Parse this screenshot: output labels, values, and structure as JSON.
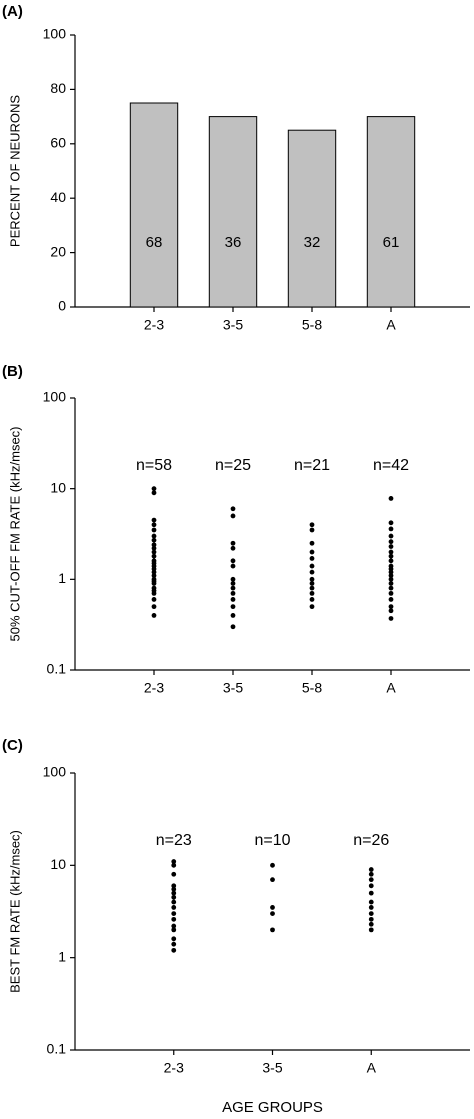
{
  "chart_data": [
    {
      "type": "bar",
      "title": "(A)",
      "ylabel": "PERCENT OF NEURONS",
      "categories": [
        "2-3",
        "3-5",
        "5-8",
        "A"
      ],
      "values": [
        75,
        70,
        65,
        70
      ],
      "counts": [
        68,
        36,
        32,
        61
      ],
      "color": "#c0c0c0",
      "ylim": [
        0,
        100
      ],
      "yticks": [
        0,
        20,
        40,
        60,
        80,
        100
      ]
    },
    {
      "type": "scatter",
      "title": "(B)",
      "ylabel": "50% CUT-OFF FM RATE (kHz/msec)",
      "categories": [
        "2-3",
        "3-5",
        "5-8",
        "A"
      ],
      "n_labels": [
        "n=58",
        "n=25",
        "n=21",
        "n=42"
      ],
      "values": [
        [
          10,
          9,
          4.5,
          4,
          3.5,
          3,
          2.7,
          2.4,
          2.2,
          2,
          1.8,
          1.6,
          1.5,
          1.4,
          1.3,
          1.2,
          1.1,
          1,
          0.95,
          0.9,
          0.8,
          0.75,
          0.7,
          0.6,
          0.5,
          0.4
        ],
        [
          6,
          5,
          2.5,
          2.2,
          1.6,
          1.4,
          1,
          0.9,
          0.8,
          0.7,
          0.6,
          0.5,
          0.4,
          0.3
        ],
        [
          4,
          3.5,
          2.5,
          2,
          1.7,
          1.4,
          1.2,
          1,
          0.9,
          0.8,
          0.7,
          0.6,
          0.5
        ],
        [
          7.8,
          4.2,
          3.6,
          3,
          2.6,
          2.3,
          2,
          1.8,
          1.6,
          1.4,
          1.3,
          1.2,
          1.1,
          1,
          0.9,
          0.8,
          0.7,
          0.6,
          0.5,
          0.45,
          0.37
        ]
      ],
      "color": "#000000",
      "log_y": true,
      "ylim": [
        0.1,
        100
      ],
      "yticks": [
        0.1,
        1,
        10,
        100
      ]
    },
    {
      "type": "scatter",
      "title": "(C)",
      "ylabel": "BEST FM RATE (kHz/msec)",
      "xlabel": "AGE GROUPS",
      "categories": [
        "2-3",
        "3-5",
        "A"
      ],
      "n_labels": [
        "n=23",
        "n=10",
        "n=26"
      ],
      "values": [
        [
          11,
          10,
          8,
          6,
          5.5,
          5,
          4.5,
          4,
          3.5,
          3,
          2.6,
          2.2,
          2,
          1.6,
          1.4,
          1.2
        ],
        [
          10,
          7,
          3.5,
          3,
          2
        ],
        [
          9,
          8,
          7,
          6,
          5,
          4,
          3.5,
          3,
          2.6,
          2.3,
          2
        ]
      ],
      "color": "#000000",
      "log_y": true,
      "ylim": [
        0.1,
        100
      ],
      "yticks": [
        0.1,
        1,
        10,
        100
      ]
    }
  ]
}
